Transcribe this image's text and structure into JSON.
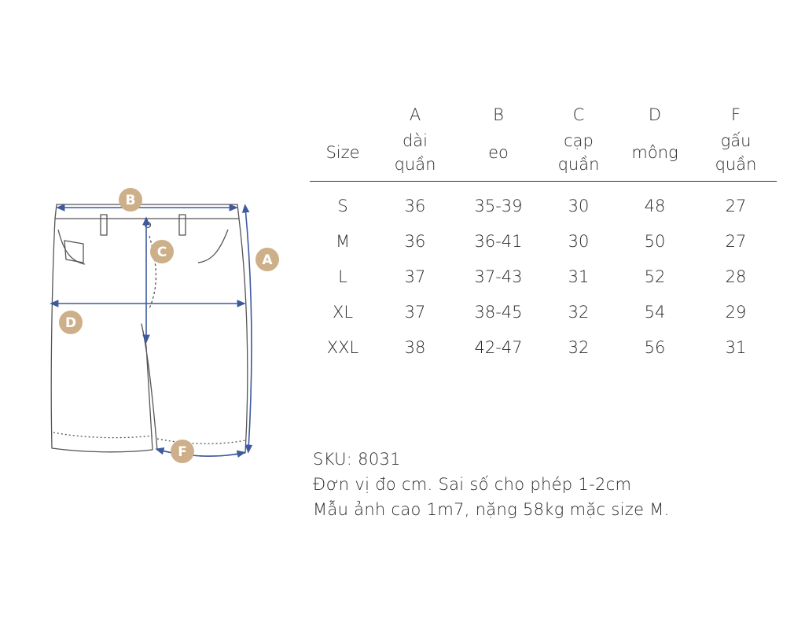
{
  "table": {
    "letters": [
      "",
      "A",
      "B",
      "C",
      "D",
      "F"
    ],
    "headers": [
      "Size",
      [
        "dài",
        "quần"
      ],
      "eo",
      [
        "cạp",
        "quần"
      ],
      "mông",
      [
        "gấu",
        "quần"
      ]
    ],
    "rows": [
      [
        "S",
        "36",
        "35-39",
        "30",
        "48",
        "27"
      ],
      [
        "M",
        "36",
        "36-41",
        "30",
        "50",
        "27"
      ],
      [
        "L",
        "37",
        "37-43",
        "31",
        "52",
        "28"
      ],
      [
        "XL",
        "37",
        "38-45",
        "32",
        "54",
        "29"
      ],
      [
        "XXL",
        "38",
        "42-47",
        "32",
        "56",
        "31"
      ]
    ]
  },
  "notes": {
    "sku": "SKU: 8031",
    "unit": "Đơn vị đo cm. Sai số cho phép 1-2cm",
    "model": "Mẫu ảnh cao 1m7, nặng 58kg mặc size M."
  },
  "diagram": {
    "badges": {
      "A": "A",
      "B": "B",
      "C": "C",
      "D": "D",
      "F": "F"
    },
    "colors": {
      "badge": "#cdb08a",
      "measure_line": "#3d5a9e",
      "outline": "#444444"
    }
  }
}
